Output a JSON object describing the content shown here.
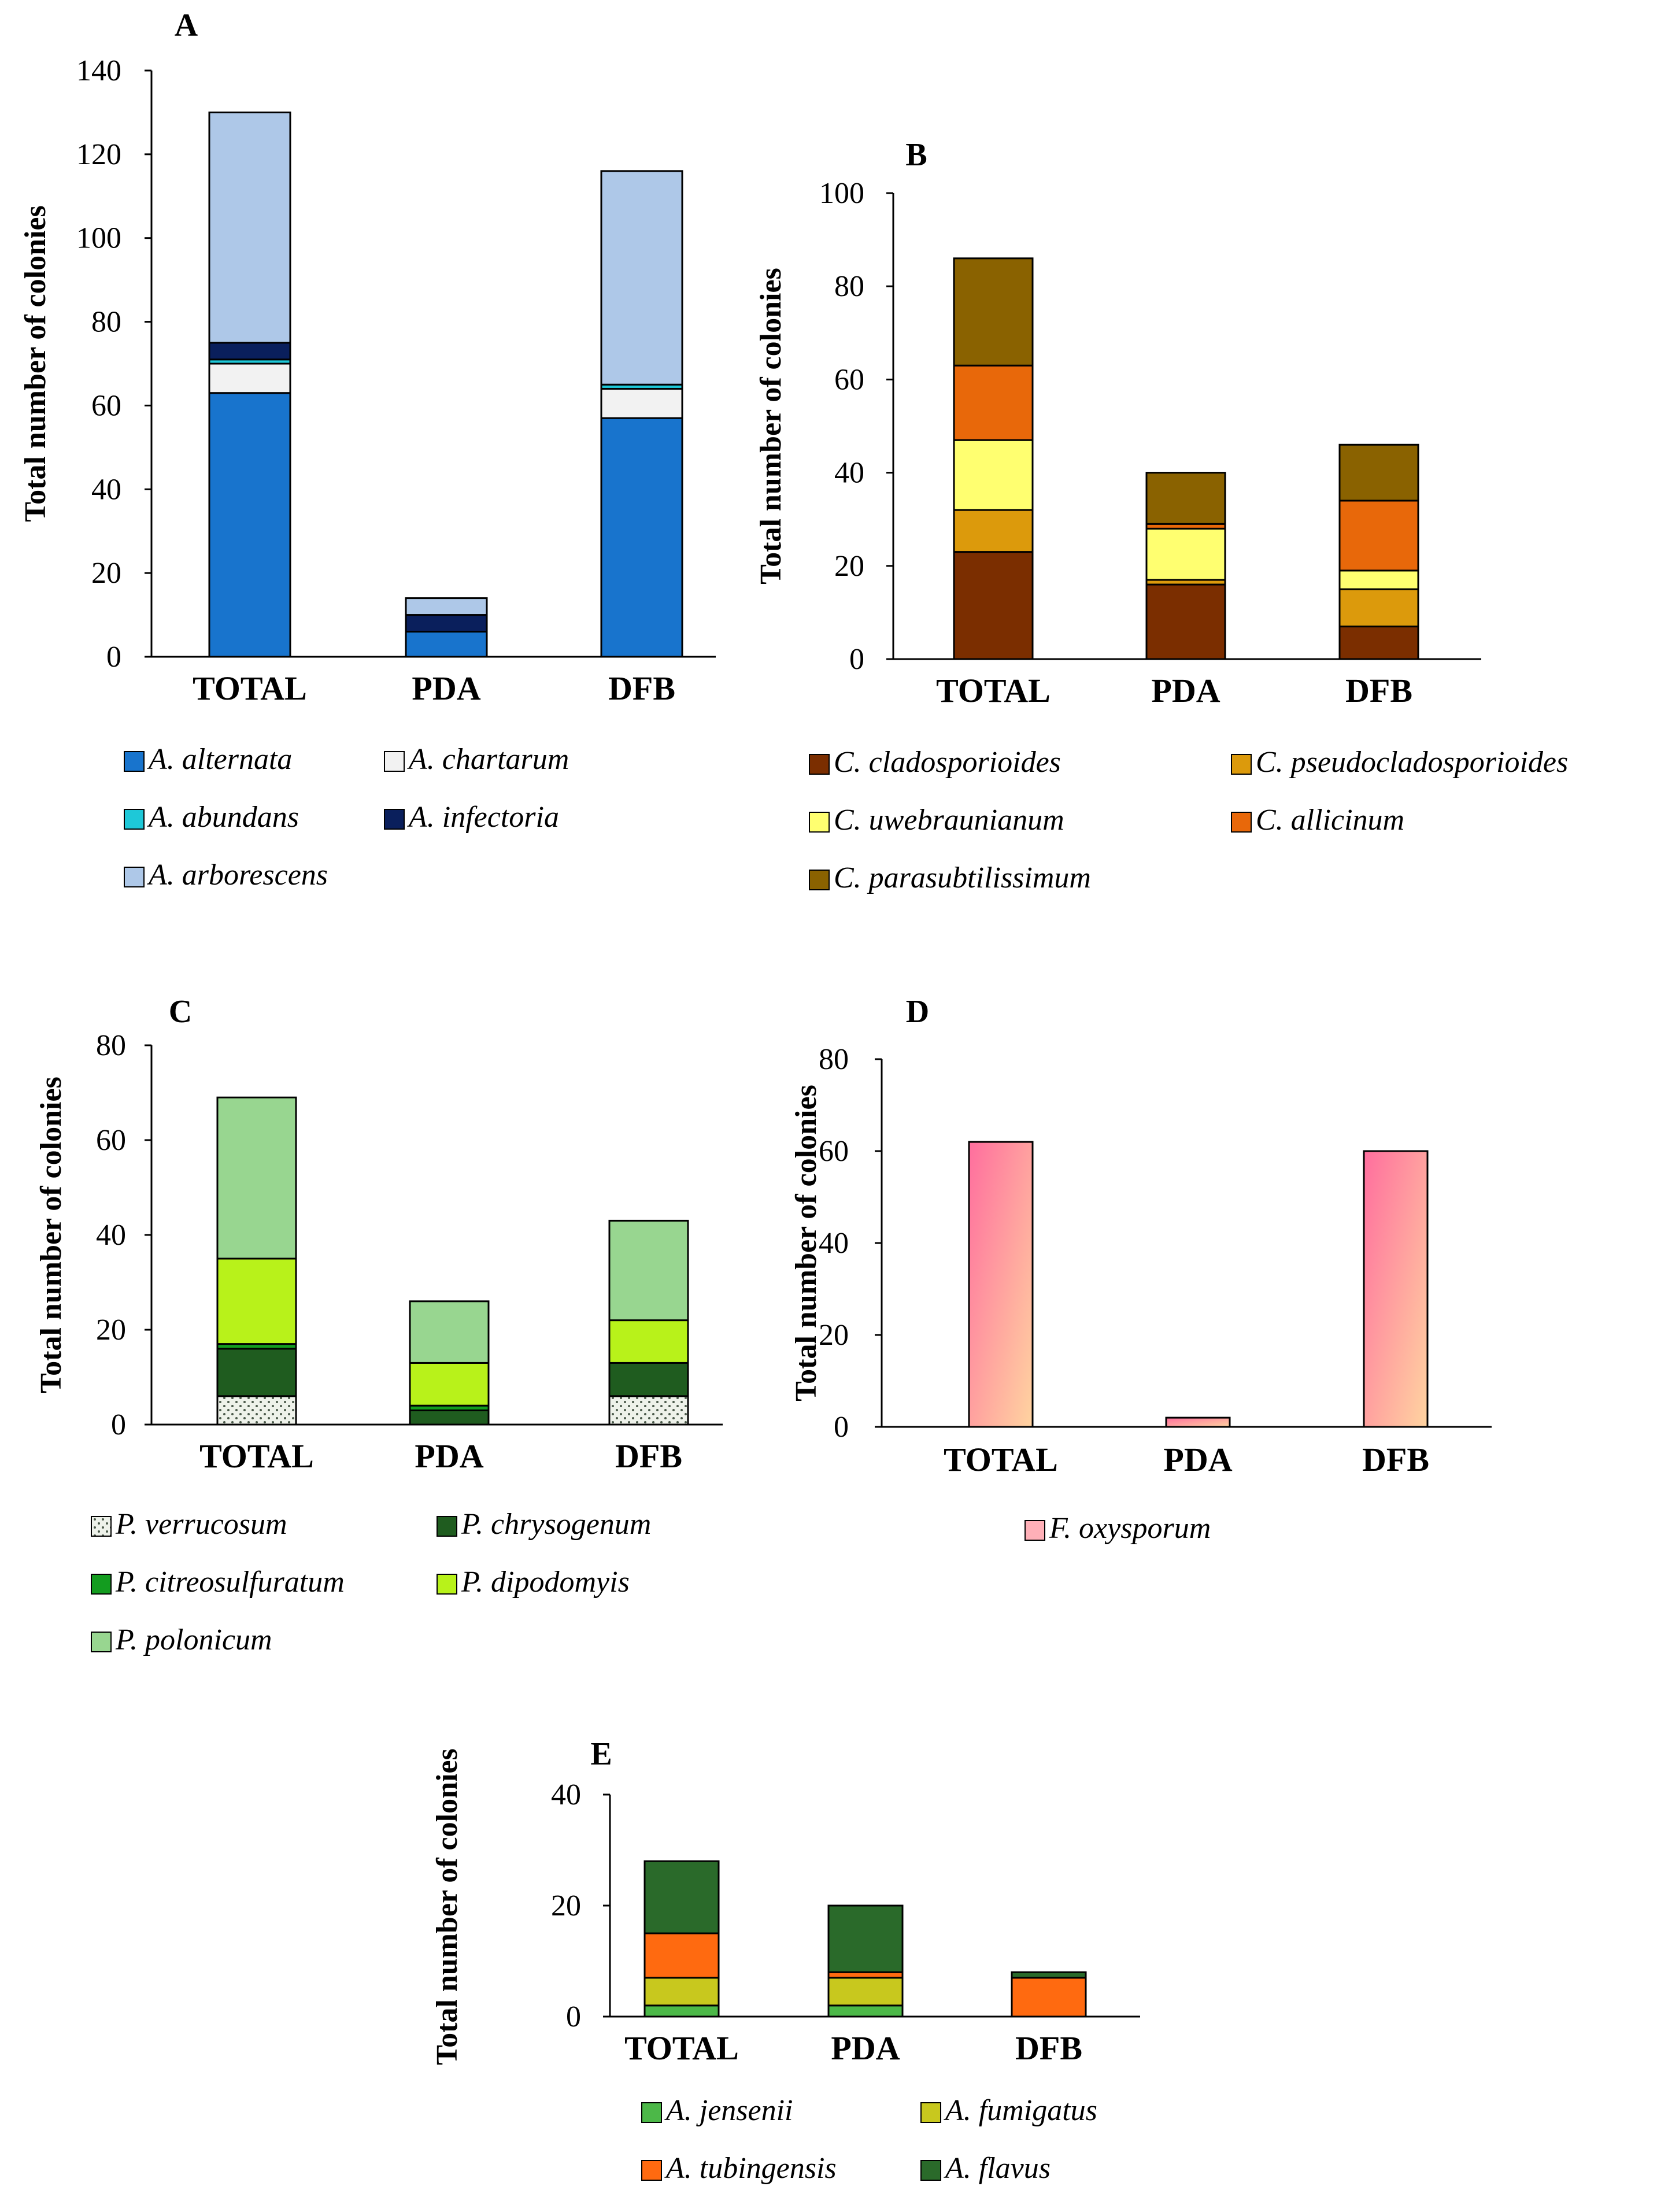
{
  "chart_data": [
    {
      "type": "bar",
      "stacked": true,
      "panel": "A",
      "ylabel": "Total number of colonies",
      "ylim": [
        0,
        140
      ],
      "yticks": [
        0,
        20,
        40,
        60,
        80,
        100,
        120,
        140
      ],
      "categories": [
        "TOTAL",
        "PDA",
        "DFB"
      ],
      "series": [
        {
          "name": "A. alternata",
          "color": "#1874cd",
          "values": [
            63,
            6,
            57
          ]
        },
        {
          "name": "A. chartarum",
          "color": "#f2f2f2",
          "values": [
            7,
            0,
            7
          ]
        },
        {
          "name": "A. abundans",
          "color": "#1ec8d8",
          "values": [
            1,
            0,
            1
          ]
        },
        {
          "name": "A. infectoria",
          "color": "#0a1f5c",
          "values": [
            4,
            4,
            0
          ]
        },
        {
          "name": "A. arborescens",
          "color": "#aec8e8",
          "values": [
            55,
            4,
            51
          ]
        }
      ]
    },
    {
      "type": "bar",
      "stacked": true,
      "panel": "B",
      "ylabel": "Total number of colonies",
      "ylim": [
        0,
        100
      ],
      "yticks": [
        0,
        20,
        40,
        60,
        80,
        100
      ],
      "categories": [
        "TOTAL",
        "PDA",
        "DFB"
      ],
      "series": [
        {
          "name": "C. cladosporioides",
          "color": "#7b2e00",
          "values": [
            23,
            16,
            7
          ]
        },
        {
          "name": "C. pseudocladosporioides",
          "color": "#dc9a0c",
          "values": [
            9,
            1,
            8
          ]
        },
        {
          "name": "C. uwebraunianum",
          "color": "#ffff70",
          "values": [
            15,
            11,
            4
          ]
        },
        {
          "name": "C. allicinum",
          "color": "#e8680a",
          "values": [
            16,
            1,
            15
          ]
        },
        {
          "name": "C. parasubtilissimum",
          "color": "#8a6200",
          "values": [
            23,
            11,
            12
          ]
        }
      ]
    },
    {
      "type": "bar",
      "stacked": true,
      "panel": "C",
      "ylabel": "Total number of colonies",
      "ylim": [
        0,
        80
      ],
      "yticks": [
        0,
        20,
        40,
        60,
        80
      ],
      "categories": [
        "TOTAL",
        "PDA",
        "DFB"
      ],
      "series": [
        {
          "name": "P. verrucosum",
          "color": "#eef2ea",
          "pattern": "dots",
          "values": [
            6,
            0,
            6
          ]
        },
        {
          "name": "P. chrysogenum",
          "color": "#1f5c1f",
          "values": [
            10,
            3,
            7
          ]
        },
        {
          "name": "P. citreosulfuratum",
          "color": "#139c1f",
          "values": [
            1,
            1,
            0
          ]
        },
        {
          "name": "P. dipodomyis",
          "color": "#b8f21a",
          "values": [
            18,
            9,
            9
          ]
        },
        {
          "name": "P. polonicum",
          "color": "#98d690",
          "values": [
            34,
            13,
            21
          ]
        }
      ]
    },
    {
      "type": "bar",
      "stacked": true,
      "panel": "D",
      "ylabel": "Total number of colonies",
      "ylim": [
        0,
        80
      ],
      "yticks": [
        0,
        20,
        40,
        60,
        80
      ],
      "categories": [
        "TOTAL",
        "PDA",
        "DFB"
      ],
      "series": [
        {
          "name": "F. oxysporum",
          "color": "#ff6e9e",
          "color2": "#ffd4a0",
          "gradient": true,
          "values": [
            62,
            2,
            60
          ]
        }
      ]
    },
    {
      "type": "bar",
      "stacked": true,
      "panel": "E",
      "ylabel": "Total number of colonies",
      "ylim": [
        0,
        40
      ],
      "yticks": [
        0,
        20,
        40
      ],
      "categories": [
        "TOTAL",
        "PDA",
        "DFB"
      ],
      "series": [
        {
          "name": "A. jensenii",
          "color": "#4cb848",
          "values": [
            2,
            2,
            0
          ]
        },
        {
          "name": "A. fumigatus",
          "color": "#c8c81e",
          "values": [
            5,
            5,
            0
          ]
        },
        {
          "name": "A. tubingensis",
          "color": "#ff6a10",
          "values": [
            8,
            1,
            7
          ]
        },
        {
          "name": "A. flavus",
          "color": "#2a6a2a",
          "values": [
            13,
            12,
            1
          ]
        }
      ]
    }
  ]
}
